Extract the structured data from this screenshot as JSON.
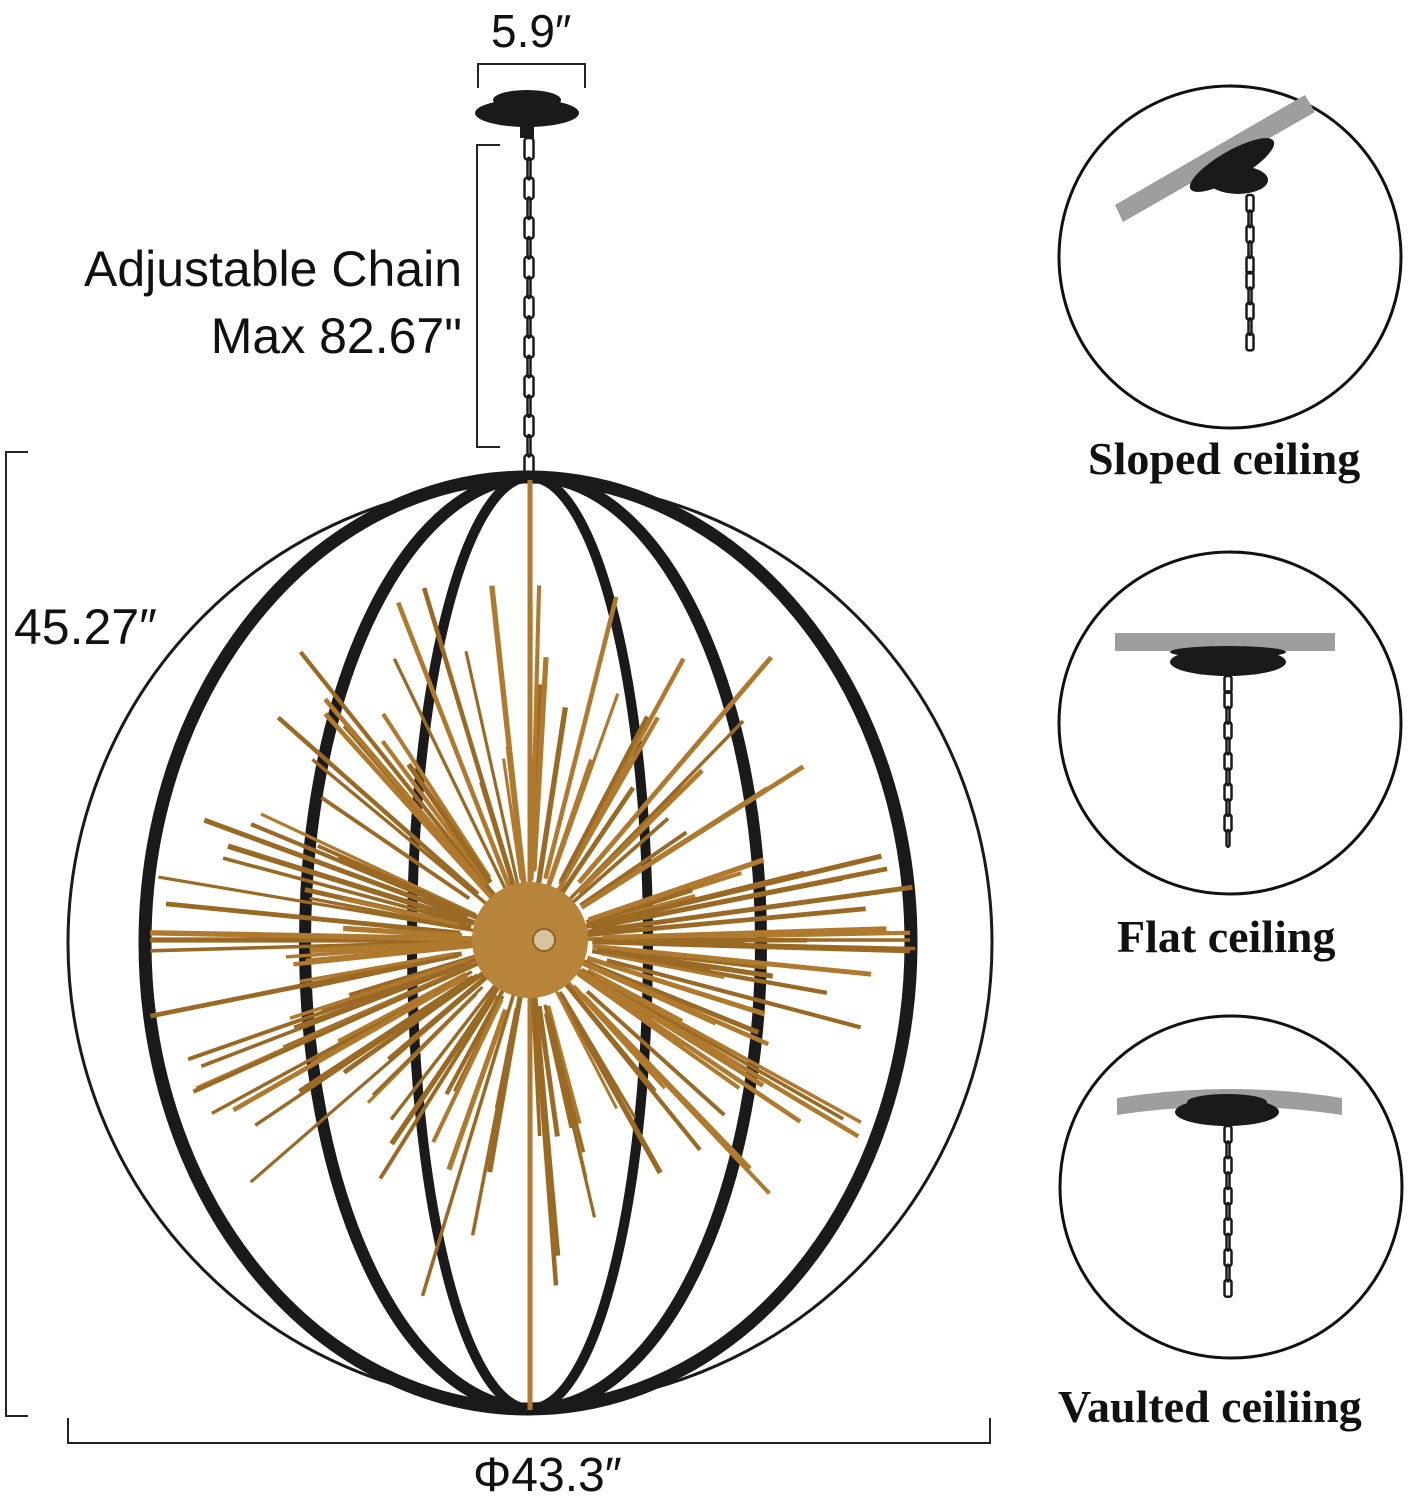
{
  "dimensions": {
    "canopy_width": "5.9″",
    "chain_title": "Adjustable Chain",
    "chain_max": "Max 82.67\"",
    "height": "45.27″",
    "diameter": "Φ43.3″"
  },
  "installation_options": [
    {
      "label": "Sloped ceiling",
      "icon": "sloped-ceiling-icon"
    },
    {
      "label": "Flat ceiling",
      "icon": "flat-ceiling-icon"
    },
    {
      "label": "Vaulted ceiliing",
      "icon": "vaulted-ceiling-icon"
    }
  ],
  "colors": {
    "frame": "#1a1a1a",
    "rods": "#b07a2e",
    "ceiling": "#9e9e9e"
  }
}
